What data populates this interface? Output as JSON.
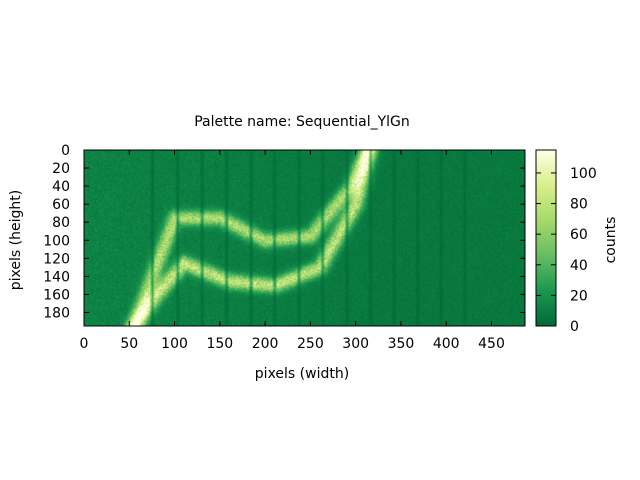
{
  "chart_data": {
    "type": "heatmap",
    "title": "Palette name: Sequential_YlGn",
    "xlabel": "pixels (width)",
    "ylabel": "pixels (height)",
    "colorbar_label": "counts",
    "xlim": [
      0,
      487
    ],
    "ylim": [
      0,
      195
    ],
    "y_inverted": true,
    "color_range": [
      0,
      115
    ],
    "x_ticks": [
      0,
      50,
      100,
      150,
      200,
      250,
      300,
      350,
      400,
      450
    ],
    "y_ticks": [
      0,
      20,
      40,
      60,
      80,
      100,
      120,
      140,
      160,
      180
    ],
    "colorbar_ticks": [
      0,
      20,
      40,
      60,
      80,
      100
    ],
    "palette": [
      "#006837",
      "#1a9850",
      "#66bd63",
      "#a6d96a",
      "#d9ef8b",
      "#ffffe5"
    ],
    "background_counts": 8,
    "stripes_x": [
      75,
      103,
      130,
      157,
      184,
      210,
      237,
      263,
      290,
      316,
      342,
      368,
      394,
      420
    ],
    "curves": [
      {
        "points": [
          [
            55,
            195
          ],
          [
            75,
            140
          ],
          [
            100,
            75
          ],
          [
            150,
            75
          ],
          [
            200,
            100
          ],
          [
            250,
            95
          ],
          [
            295,
            40
          ],
          [
            312,
            0
          ]
        ],
        "peak": 70
      },
      {
        "points": [
          [
            55,
            195
          ],
          [
            80,
            160
          ],
          [
            110,
            125
          ],
          [
            160,
            145
          ],
          [
            210,
            150
          ],
          [
            260,
            130
          ],
          [
            300,
            60
          ],
          [
            315,
            0
          ]
        ],
        "peak": 80
      }
    ]
  }
}
